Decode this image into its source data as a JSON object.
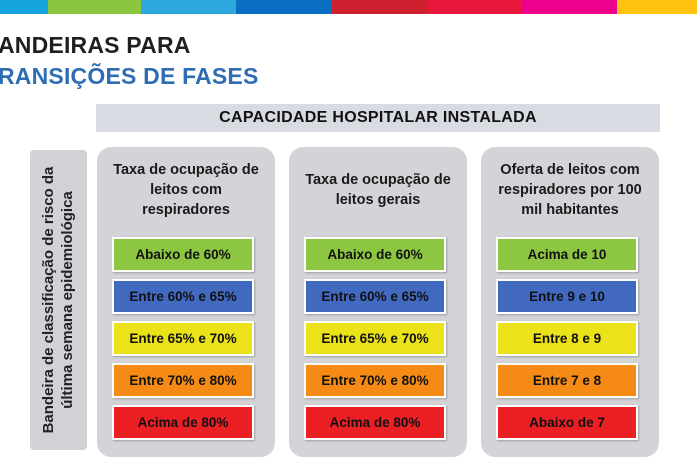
{
  "top_bar_colors": [
    "#15a6e0",
    "#8cc63f",
    "#2da9df",
    "#0a6fc2",
    "#cf2030",
    "#e8173c",
    "#ec008c",
    "#ffc20e"
  ],
  "title": {
    "line1": "ANDEIRAS PARA",
    "line2": "RANSIÇÕES DE FASES"
  },
  "header": "CAPACIDADE HOSPITALAR INSTALADA",
  "sidebar": {
    "line1": "Bandeira de classificação de risco da",
    "line2": "última semana epidemiológica"
  },
  "colors": {
    "green": "#8dc641",
    "blue": "#4169bf",
    "yellow": "#ebe219",
    "orange": "#f58b14",
    "red": "#ec1f24"
  },
  "columns": [
    {
      "title": [
        "Taxa de ocupação de",
        "leitos com",
        "respiradores"
      ],
      "levels": [
        {
          "label": "Abaixo de 60%",
          "color": "green"
        },
        {
          "label": "Entre 60% e 65%",
          "color": "blue"
        },
        {
          "label": "Entre 65% e 70%",
          "color": "yellow"
        },
        {
          "label": "Entre 70% e 80%",
          "color": "orange"
        },
        {
          "label": "Acima de 80%",
          "color": "red"
        }
      ]
    },
    {
      "title": [
        "Taxa de ocupação de",
        "leitos gerais"
      ],
      "levels": [
        {
          "label": "Abaixo de 60%",
          "color": "green"
        },
        {
          "label": "Entre 60% e 65%",
          "color": "blue"
        },
        {
          "label": "Entre 65% e 70%",
          "color": "yellow"
        },
        {
          "label": "Entre 70% e 80%",
          "color": "orange"
        },
        {
          "label": "Acima de 80%",
          "color": "red"
        }
      ]
    },
    {
      "title": [
        "Oferta de leitos com",
        "respiradores por 100",
        "mil habitantes"
      ],
      "levels": [
        {
          "label": "Acima de 10",
          "color": "green"
        },
        {
          "label": "Entre 9 e 10",
          "color": "blue"
        },
        {
          "label": "Entre 8 e 9",
          "color": "yellow"
        },
        {
          "label": "Entre 7 e 8",
          "color": "orange"
        },
        {
          "label": "Abaixo de 7",
          "color": "red"
        }
      ]
    }
  ]
}
